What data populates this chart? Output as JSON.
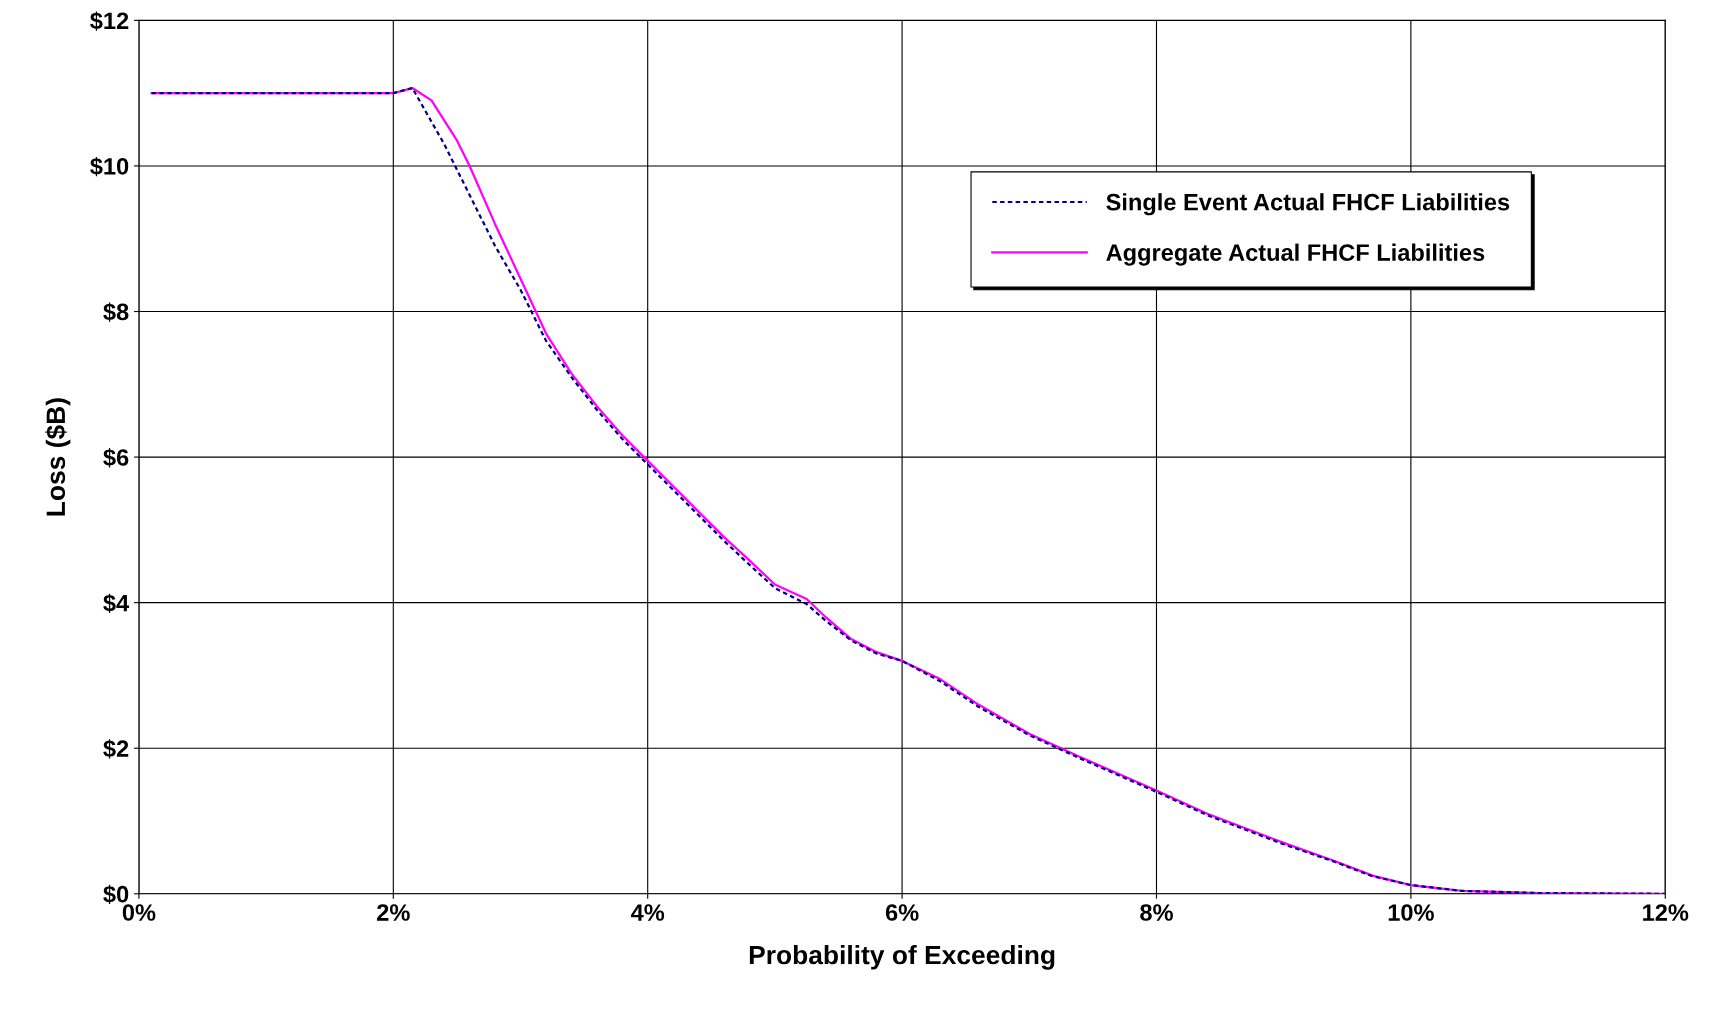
{
  "chart_data": {
    "type": "line",
    "xlabel": "Probability of Exceeding",
    "ylabel": "Loss ($B)",
    "xlim": [
      0,
      12
    ],
    "xticks": [
      {
        "value": 0,
        "label": "0%"
      },
      {
        "value": 2,
        "label": "2%"
      },
      {
        "value": 4,
        "label": "4%"
      },
      {
        "value": 6,
        "label": "6%"
      },
      {
        "value": 8,
        "label": "8%"
      },
      {
        "value": 10,
        "label": "10%"
      },
      {
        "value": 12,
        "label": "12%"
      }
    ],
    "ylim": [
      0,
      12
    ],
    "yticks": [
      {
        "value": 0,
        "label": "$0"
      },
      {
        "value": 2,
        "label": "$2"
      },
      {
        "value": 4,
        "label": "$4"
      },
      {
        "value": 6,
        "label": "$6"
      },
      {
        "value": 8,
        "label": "$8"
      },
      {
        "value": 10,
        "label": "$10"
      },
      {
        "value": 12,
        "label": "$12"
      }
    ],
    "grid": true,
    "legend": "top right",
    "marker": "none",
    "series": [
      {
        "name": "Single Event Actual FHCF Liabilities",
        "color": "#000080",
        "line_style": "dotted",
        "x": [
          0.1,
          2.0,
          2.15,
          2.4,
          2.6,
          2.8,
          3.0,
          3.2,
          3.4,
          3.6,
          3.8,
          4.0,
          4.2,
          4.4,
          4.6,
          4.8,
          5.0,
          5.25,
          5.4,
          5.6,
          5.8,
          6.0,
          6.3,
          6.6,
          7.0,
          7.4,
          8.0,
          8.4,
          9.0,
          9.4,
          9.7,
          10.0,
          10.4,
          11.0,
          12.0
        ],
        "values": [
          11.0,
          11.0,
          11.07,
          10.3,
          9.6,
          8.9,
          8.3,
          7.6,
          7.1,
          6.65,
          6.25,
          5.9,
          5.55,
          5.2,
          4.85,
          4.52,
          4.2,
          3.98,
          3.75,
          3.48,
          3.3,
          3.2,
          2.92,
          2.57,
          2.18,
          1.86,
          1.4,
          1.08,
          0.68,
          0.44,
          0.24,
          0.12,
          0.04,
          0.01,
          0.0
        ]
      },
      {
        "name": "Aggregate Actual FHCF Liabilities",
        "color": "#ff00ff",
        "line_style": "solid",
        "x": [
          0.1,
          2.0,
          2.15,
          2.3,
          2.5,
          2.6,
          2.8,
          3.0,
          3.2,
          3.4,
          3.6,
          3.8,
          4.0,
          4.2,
          4.4,
          4.6,
          4.8,
          5.0,
          5.25,
          5.4,
          5.6,
          5.8,
          6.0,
          6.3,
          6.6,
          7.0,
          7.4,
          8.0,
          8.4,
          9.0,
          9.4,
          9.7,
          10.0,
          10.4,
          11.0,
          12.0
        ],
        "values": [
          11.0,
          11.0,
          11.07,
          10.9,
          10.35,
          10.0,
          9.2,
          8.45,
          7.7,
          7.15,
          6.7,
          6.3,
          5.95,
          5.6,
          5.25,
          4.9,
          4.58,
          4.25,
          4.05,
          3.8,
          3.5,
          3.32,
          3.2,
          2.95,
          2.6,
          2.2,
          1.88,
          1.42,
          1.1,
          0.7,
          0.45,
          0.25,
          0.12,
          0.04,
          0.01,
          0.0
        ]
      }
    ]
  }
}
